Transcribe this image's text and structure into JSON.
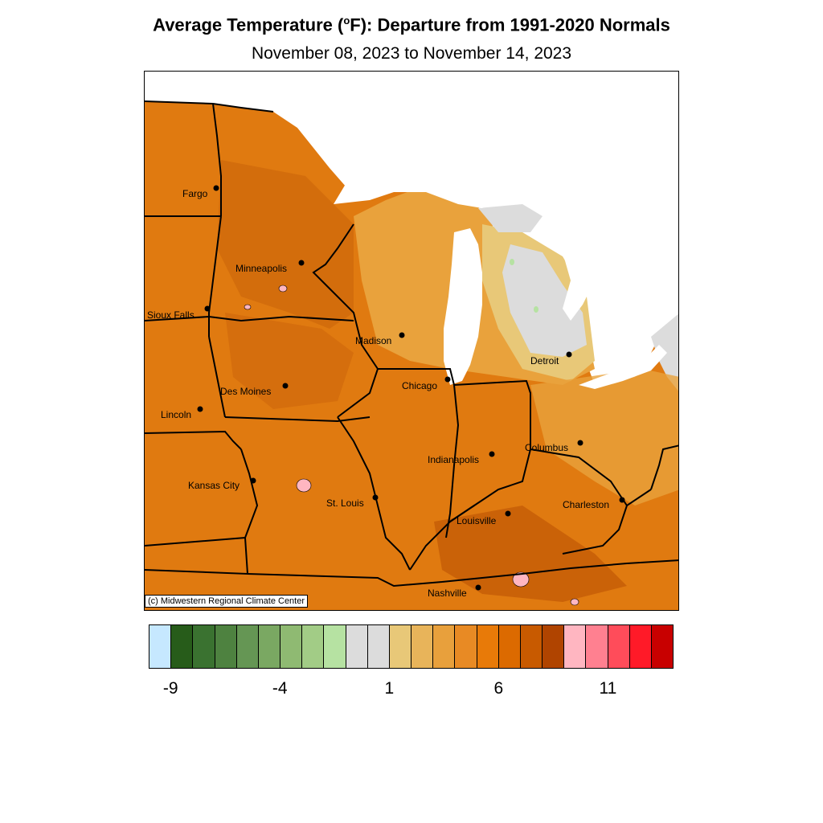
{
  "title_main": "Average Temperature (",
  "title_deg": "o",
  "title_rest": "F): Departure from 1991-2020 Normals",
  "subtitle": "November 08, 2023 to November 14, 2023",
  "copyright": "(c) Midwestern Regional Climate Center",
  "cities": [
    {
      "name": "Fargo"
    },
    {
      "name": "Minneapolis"
    },
    {
      "name": "Sioux Falls"
    },
    {
      "name": "Madison"
    },
    {
      "name": "Detroit"
    },
    {
      "name": "Chicago"
    },
    {
      "name": "Des Moines"
    },
    {
      "name": "Lincoln"
    },
    {
      "name": "Columbus"
    },
    {
      "name": "Indianapolis"
    },
    {
      "name": "Kansas City"
    },
    {
      "name": "St. Louis"
    },
    {
      "name": "Charleston"
    },
    {
      "name": "Louisville"
    },
    {
      "name": "Nashville"
    }
  ],
  "legend": {
    "colors": [
      "#c6e8ff",
      "#275c1a",
      "#3a7230",
      "#4e8240",
      "#659654",
      "#7aa862",
      "#8fba72",
      "#a2cc86",
      "#b6e2a2",
      "#dcdcdc",
      "#dcdcdc",
      "#e8c878",
      "#e8b45a",
      "#e8a03c",
      "#e88a24",
      "#e87a08",
      "#dc6a00",
      "#c85a00",
      "#b04400",
      "#ffb6c1",
      "#ff8090",
      "#ff4c5a",
      "#ff1a28",
      "#c80000"
    ],
    "ticks": [
      "-9",
      "-4",
      "1",
      "6",
      "11"
    ]
  },
  "colors": {
    "water": "#ffffff",
    "land_base": "#e07a10",
    "land_dark": "#c9620a",
    "land_light": "#e9a23c",
    "land_pale": "#e8c878",
    "near_normal": "#dcdcdc",
    "pink": "#ffb6c1",
    "border": "#000000"
  }
}
